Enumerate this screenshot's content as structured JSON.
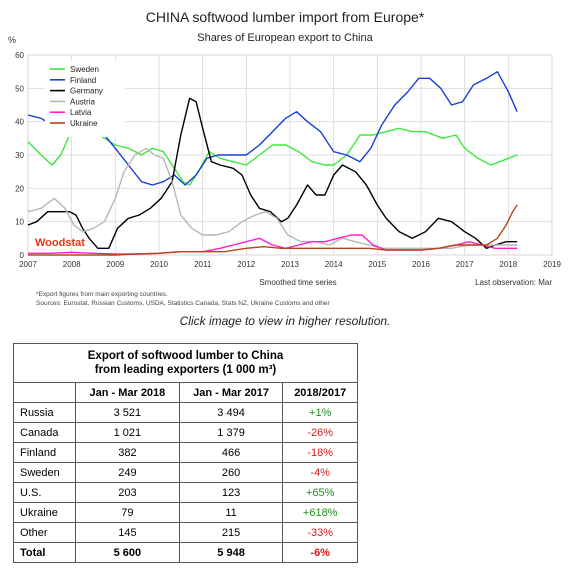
{
  "chart_data": {
    "type": "line",
    "title": "CHINA softwood lumber import from Europe*",
    "subtitle": "Shares of European export to China",
    "ylabel": "%",
    "xlabel": "Smoothed time series",
    "note_right": "Last observation: Mar",
    "watermark": "Woodstat",
    "footnote1": "*Export figures from main exporting countries.",
    "footnote2": "Sources: Eurostat, Russian Customs, USDA, Statistics Canada, Stats NZ, Ukraine Customs and other",
    "ylim": [
      0,
      60
    ],
    "yticks": [
      "0",
      "10",
      "20",
      "30",
      "40",
      "50",
      "60"
    ],
    "xlim": [
      2007,
      2019
    ],
    "xticks": [
      "2007",
      "2008",
      "2009",
      "2010",
      "2011",
      "2012",
      "2013",
      "2014",
      "2015",
      "2016",
      "2017",
      "2018",
      "2019"
    ],
    "grid": true,
    "legend_position": "top-left",
    "series": [
      {
        "name": "Sweden",
        "color": "#3de83d",
        "points": [
          [
            2007.0,
            34
          ],
          [
            2007.3,
            30
          ],
          [
            2007.55,
            27
          ],
          [
            2007.75,
            30
          ],
          [
            2007.95,
            36
          ],
          [
            2008.1,
            40
          ],
          [
            2008.3,
            38
          ],
          [
            2008.55,
            37
          ],
          [
            2008.75,
            35
          ],
          [
            2009.0,
            33
          ],
          [
            2009.3,
            32
          ],
          [
            2009.6,
            30
          ],
          [
            2009.85,
            32
          ],
          [
            2010.1,
            31
          ],
          [
            2010.35,
            26
          ],
          [
            2010.55,
            22
          ],
          [
            2010.7,
            21
          ],
          [
            2010.9,
            25
          ],
          [
            2011.15,
            31
          ],
          [
            2011.4,
            29
          ],
          [
            2011.7,
            28
          ],
          [
            2012.0,
            27
          ],
          [
            2012.3,
            30
          ],
          [
            2012.6,
            33
          ],
          [
            2012.9,
            33
          ],
          [
            2013.2,
            31
          ],
          [
            2013.5,
            28
          ],
          [
            2013.8,
            27
          ],
          [
            2014.0,
            27
          ],
          [
            2014.3,
            30
          ],
          [
            2014.6,
            36
          ],
          [
            2014.9,
            36
          ],
          [
            2015.2,
            37
          ],
          [
            2015.5,
            38
          ],
          [
            2015.8,
            37
          ],
          [
            2016.1,
            37
          ],
          [
            2016.5,
            35
          ],
          [
            2016.8,
            36
          ],
          [
            2017.0,
            32
          ],
          [
            2017.3,
            29
          ],
          [
            2017.6,
            27
          ],
          [
            2017.8,
            28
          ],
          [
            2018.0,
            29
          ],
          [
            2018.2,
            30
          ]
        ]
      },
      {
        "name": "Finland",
        "color": "#1a3fd6",
        "points": [
          [
            2007.0,
            42
          ],
          [
            2007.3,
            41
          ],
          [
            2007.55,
            39
          ],
          [
            2007.8,
            39
          ],
          [
            2008.0,
            40
          ],
          [
            2008.3,
            41
          ],
          [
            2008.55,
            40
          ],
          [
            2008.75,
            36
          ],
          [
            2009.0,
            32
          ],
          [
            2009.3,
            27
          ],
          [
            2009.6,
            22
          ],
          [
            2009.85,
            21
          ],
          [
            2010.1,
            22
          ],
          [
            2010.35,
            24
          ],
          [
            2010.6,
            21
          ],
          [
            2010.85,
            24
          ],
          [
            2011.1,
            29
          ],
          [
            2011.35,
            30
          ],
          [
            2011.7,
            30
          ],
          [
            2012.0,
            30
          ],
          [
            2012.3,
            33
          ],
          [
            2012.6,
            37
          ],
          [
            2012.9,
            41
          ],
          [
            2013.15,
            43
          ],
          [
            2013.4,
            40
          ],
          [
            2013.7,
            37
          ],
          [
            2014.0,
            31
          ],
          [
            2014.3,
            30
          ],
          [
            2014.6,
            28
          ],
          [
            2014.85,
            32
          ],
          [
            2015.1,
            39
          ],
          [
            2015.4,
            45
          ],
          [
            2015.7,
            49
          ],
          [
            2015.95,
            53
          ],
          [
            2016.2,
            53
          ],
          [
            2016.45,
            50
          ],
          [
            2016.7,
            45
          ],
          [
            2016.95,
            46
          ],
          [
            2017.2,
            51
          ],
          [
            2017.5,
            53
          ],
          [
            2017.75,
            55
          ],
          [
            2018.0,
            49
          ],
          [
            2018.2,
            43
          ]
        ]
      },
      {
        "name": "Germany",
        "color": "#000000",
        "points": [
          [
            2007.0,
            9
          ],
          [
            2007.2,
            10
          ],
          [
            2007.45,
            13
          ],
          [
            2007.75,
            13
          ],
          [
            2007.95,
            13
          ],
          [
            2008.1,
            12
          ],
          [
            2008.25,
            8
          ],
          [
            2008.4,
            5
          ],
          [
            2008.6,
            2
          ],
          [
            2008.85,
            2
          ],
          [
            2009.05,
            8
          ],
          [
            2009.3,
            11
          ],
          [
            2009.55,
            12
          ],
          [
            2009.8,
            14
          ],
          [
            2010.05,
            17
          ],
          [
            2010.3,
            22
          ],
          [
            2010.5,
            36
          ],
          [
            2010.7,
            47
          ],
          [
            2010.85,
            46
          ],
          [
            2011.0,
            38
          ],
          [
            2011.2,
            28
          ],
          [
            2011.4,
            27
          ],
          [
            2011.7,
            26
          ],
          [
            2011.9,
            24
          ],
          [
            2012.1,
            18
          ],
          [
            2012.3,
            14
          ],
          [
            2012.55,
            13
          ],
          [
            2012.8,
            10
          ],
          [
            2012.95,
            11
          ],
          [
            2013.15,
            15
          ],
          [
            2013.4,
            21
          ],
          [
            2013.6,
            18
          ],
          [
            2013.8,
            18
          ],
          [
            2014.0,
            24
          ],
          [
            2014.2,
            27
          ],
          [
            2014.5,
            25
          ],
          [
            2014.75,
            21
          ],
          [
            2015.0,
            15
          ],
          [
            2015.2,
            11
          ],
          [
            2015.5,
            7
          ],
          [
            2015.8,
            5
          ],
          [
            2016.1,
            7
          ],
          [
            2016.4,
            11
          ],
          [
            2016.7,
            10
          ],
          [
            2017.0,
            7
          ],
          [
            2017.25,
            5
          ],
          [
            2017.5,
            2
          ],
          [
            2017.7,
            3
          ],
          [
            2017.95,
            4
          ],
          [
            2018.2,
            4
          ]
        ]
      },
      {
        "name": "Austria",
        "color": "#b7b7b7",
        "points": [
          [
            2007.0,
            13
          ],
          [
            2007.3,
            14
          ],
          [
            2007.6,
            17
          ],
          [
            2007.85,
            14
          ],
          [
            2008.05,
            9
          ],
          [
            2008.25,
            7
          ],
          [
            2008.5,
            8
          ],
          [
            2008.75,
            10
          ],
          [
            2009.0,
            17
          ],
          [
            2009.2,
            25
          ],
          [
            2009.45,
            30
          ],
          [
            2009.7,
            32
          ],
          [
            2009.9,
            30
          ],
          [
            2010.1,
            29
          ],
          [
            2010.3,
            22
          ],
          [
            2010.5,
            12
          ],
          [
            2010.75,
            8
          ],
          [
            2011.0,
            6
          ],
          [
            2011.3,
            6
          ],
          [
            2011.6,
            7
          ],
          [
            2011.9,
            10
          ],
          [
            2012.2,
            12
          ],
          [
            2012.45,
            13
          ],
          [
            2012.7,
            11
          ],
          [
            2012.95,
            6
          ],
          [
            2013.25,
            4
          ],
          [
            2013.6,
            4
          ],
          [
            2013.9,
            3
          ],
          [
            2014.2,
            5
          ],
          [
            2014.5,
            4
          ],
          [
            2014.8,
            3
          ],
          [
            2015.1,
            2
          ],
          [
            2015.5,
            2
          ],
          [
            2015.9,
            2
          ],
          [
            2016.3,
            2
          ],
          [
            2016.7,
            2
          ],
          [
            2017.1,
            3
          ],
          [
            2017.5,
            3
          ],
          [
            2017.8,
            3
          ],
          [
            2018.0,
            3
          ],
          [
            2018.2,
            3
          ]
        ]
      },
      {
        "name": "Latvia",
        "color": "#ff1fd0",
        "points": [
          [
            2007.0,
            0.5
          ],
          [
            2007.5,
            0.5
          ],
          [
            2008.0,
            0.8
          ],
          [
            2008.5,
            0.5
          ],
          [
            2009.0,
            0.3
          ],
          [
            2009.5,
            0.3
          ],
          [
            2010.0,
            0.5
          ],
          [
            2010.5,
            1
          ],
          [
            2011.0,
            1
          ],
          [
            2011.4,
            2
          ],
          [
            2011.7,
            3
          ],
          [
            2012.0,
            4
          ],
          [
            2012.3,
            5
          ],
          [
            2012.6,
            3
          ],
          [
            2012.9,
            2
          ],
          [
            2013.2,
            3
          ],
          [
            2013.5,
            4
          ],
          [
            2013.8,
            4
          ],
          [
            2014.1,
            5
          ],
          [
            2014.4,
            6
          ],
          [
            2014.65,
            6
          ],
          [
            2014.9,
            3
          ],
          [
            2015.2,
            1.5
          ],
          [
            2015.6,
            1.5
          ],
          [
            2016.0,
            1.5
          ],
          [
            2016.4,
            2
          ],
          [
            2016.8,
            3
          ],
          [
            2017.1,
            4
          ],
          [
            2017.4,
            3
          ],
          [
            2017.7,
            2
          ],
          [
            2018.0,
            2
          ],
          [
            2018.2,
            2
          ]
        ]
      },
      {
        "name": "Ukraine",
        "color": "#b5451b",
        "points": [
          [
            2007.0,
            0
          ],
          [
            2007.5,
            0
          ],
          [
            2008.0,
            0
          ],
          [
            2008.5,
            0
          ],
          [
            2009.0,
            0
          ],
          [
            2009.5,
            0.3
          ],
          [
            2010.0,
            0.5
          ],
          [
            2010.5,
            1
          ],
          [
            2011.0,
            1
          ],
          [
            2011.5,
            1
          ],
          [
            2012.0,
            2
          ],
          [
            2012.4,
            2.5
          ],
          [
            2012.8,
            2
          ],
          [
            2013.2,
            2
          ],
          [
            2013.6,
            2
          ],
          [
            2014.0,
            2
          ],
          [
            2014.4,
            2
          ],
          [
            2014.8,
            2
          ],
          [
            2015.2,
            1.5
          ],
          [
            2015.6,
            1.5
          ],
          [
            2016.0,
            1.5
          ],
          [
            2016.4,
            2
          ],
          [
            2016.8,
            3
          ],
          [
            2017.2,
            3
          ],
          [
            2017.5,
            3
          ],
          [
            2017.75,
            5
          ],
          [
            2017.95,
            9
          ],
          [
            2018.1,
            13
          ],
          [
            2018.2,
            15
          ]
        ]
      }
    ]
  },
  "caption": "Click image to view in higher resolution.",
  "table": {
    "title_line1": "Export of softwood lumber to China",
    "title_line2": "from leading exporters (1 000 m³)",
    "headers": [
      "",
      "Jan - Mar 2018",
      "Jan - Mar 2017",
      "2018/2017"
    ],
    "rows": [
      {
        "name": "Russia",
        "v2018": "3 521",
        "v2017": "3 494",
        "change": "+1%",
        "sign": "pos"
      },
      {
        "name": "Canada",
        "v2018": "1 021",
        "v2017": "1 379",
        "change": "-26%",
        "sign": "neg"
      },
      {
        "name": "Finland",
        "v2018": "382",
        "v2017": "466",
        "change": "-18%",
        "sign": "neg"
      },
      {
        "name": "Sweden",
        "v2018": "249",
        "v2017": "260",
        "change": "-4%",
        "sign": "neg"
      },
      {
        "name": "U.S.",
        "v2018": "203",
        "v2017": "123",
        "change": "+65%",
        "sign": "pos"
      },
      {
        "name": "Ukraine",
        "v2018": "79",
        "v2017": "11",
        "change": "+618%",
        "sign": "pos"
      },
      {
        "name": "Other",
        "v2018": "145",
        "v2017": "215",
        "change": "-33%",
        "sign": "neg"
      }
    ],
    "total": {
      "name": "Total",
      "v2018": "5 600",
      "v2017": "5 948",
      "change": "-6%",
      "sign": "neg"
    }
  }
}
